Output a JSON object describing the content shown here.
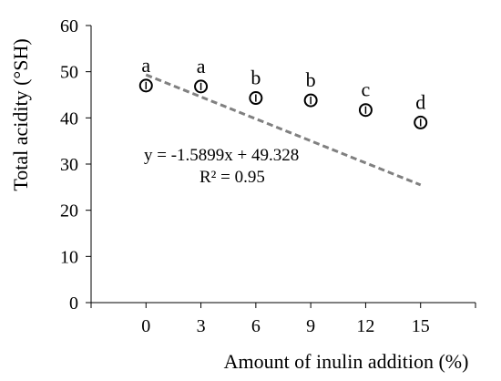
{
  "chart_data": {
    "type": "scatter",
    "title": "",
    "xlabel": "Amount of inulin addition (%)",
    "ylabel": "Total acidity (°SH)",
    "xlim": [
      -3,
      18
    ],
    "ylim": [
      0,
      60
    ],
    "x_ticks": [
      0,
      3,
      6,
      9,
      12,
      15
    ],
    "y_ticks": [
      0,
      10,
      20,
      30,
      40,
      50,
      60
    ],
    "grid": false,
    "legend": "none",
    "series": [
      {
        "x": [
          0,
          3,
          6,
          9,
          12,
          15
        ],
        "y": [
          47.0,
          46.8,
          44.3,
          43.8,
          41.7,
          39.0
        ],
        "error": [
          0.8,
          0.8,
          0.8,
          0.8,
          0.8,
          0.8
        ],
        "marker": "open-circle",
        "point_labels": [
          "a",
          "a",
          "b",
          "b",
          "c",
          "d"
        ]
      }
    ],
    "trendline": {
      "type": "linear",
      "slope": -1.5899,
      "intercept": 49.328,
      "style": "dashed",
      "color": "#808080",
      "equation_text": "y = -1.5899x + 49.328",
      "r2_text": "R² = 0.95"
    }
  }
}
